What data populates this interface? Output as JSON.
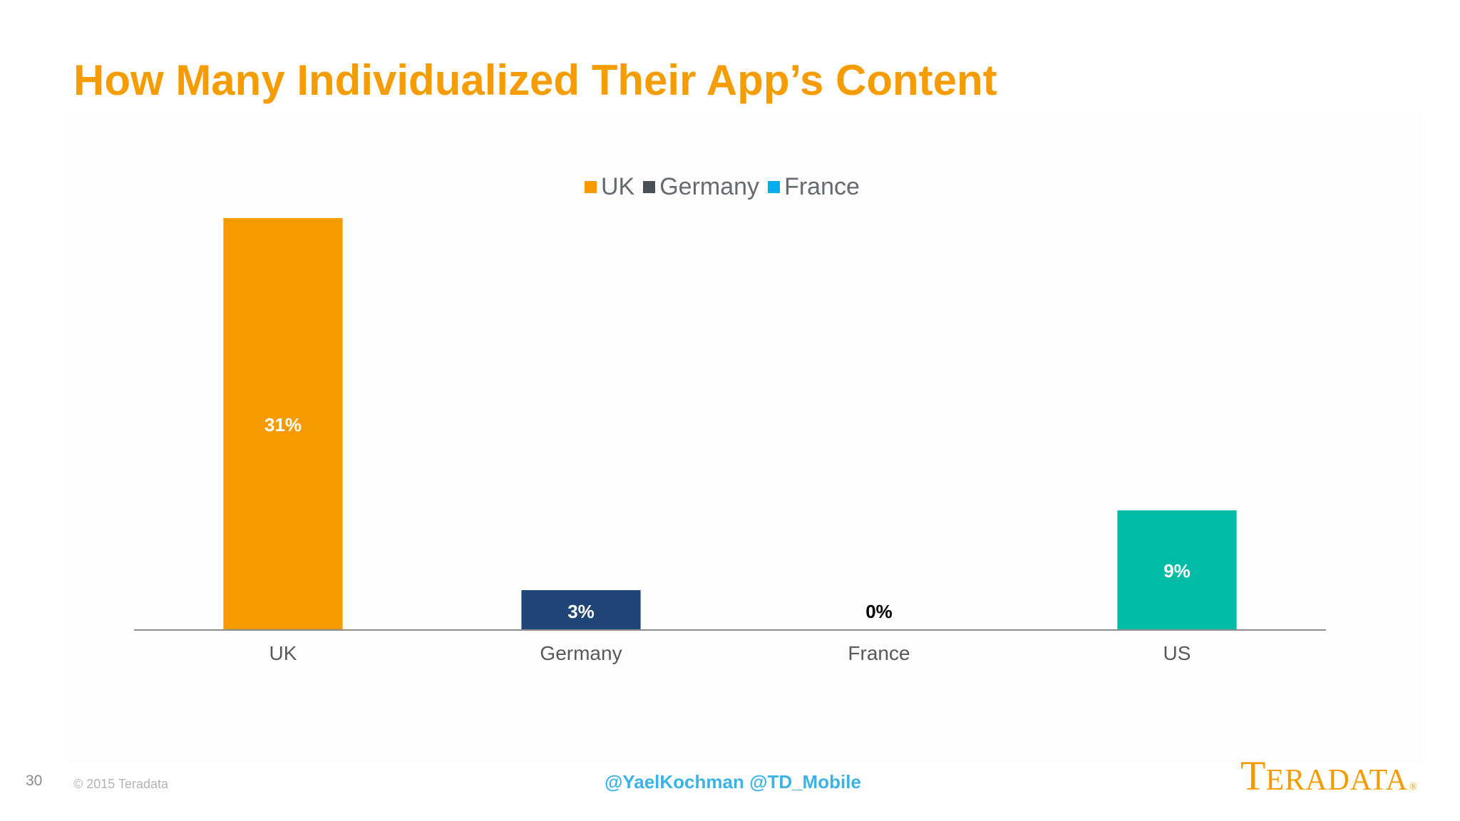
{
  "slide": {
    "title": "How Many Individualized Their App’s Content",
    "number": "30",
    "copyright": "© 2015 Teradata",
    "handles": "@YaelKochman @TD_Mobile",
    "logo_initial": "T",
    "logo_rest": "ERADATA",
    "logo_mark": "®"
  },
  "colors": {
    "title": "#f59c00",
    "handles": "#3ab3e6",
    "logo": "#f39b00",
    "axis": "#8c8c8c",
    "tick_label": "#595959",
    "uk": "#f79a00",
    "germany": "#1f4677",
    "france": "#00aeef",
    "us": "#00bca6",
    "legend_germany": "#4a4f57"
  },
  "legend": [
    {
      "label": "UK",
      "color": "#f79a00"
    },
    {
      "label": "Germany",
      "color": "#4a4f57"
    },
    {
      "label": "France",
      "color": "#00aeef"
    }
  ],
  "chart_data": {
    "type": "bar",
    "categories": [
      "UK",
      "Germany",
      "France",
      "US"
    ],
    "values": [
      31,
      3,
      0,
      9
    ],
    "data_labels": [
      "31%",
      "3%",
      "0%",
      "9%"
    ],
    "bar_colors": [
      "#f79a00",
      "#1f4677",
      "#00aeef",
      "#00bca6"
    ],
    "label_colors": [
      "#ffffff",
      "#ffffff",
      "#000000",
      "#ffffff"
    ],
    "title": "",
    "xlabel": "",
    "ylabel": "",
    "ylim": [
      0,
      31
    ],
    "grid": false,
    "legend_position": "top-center"
  }
}
